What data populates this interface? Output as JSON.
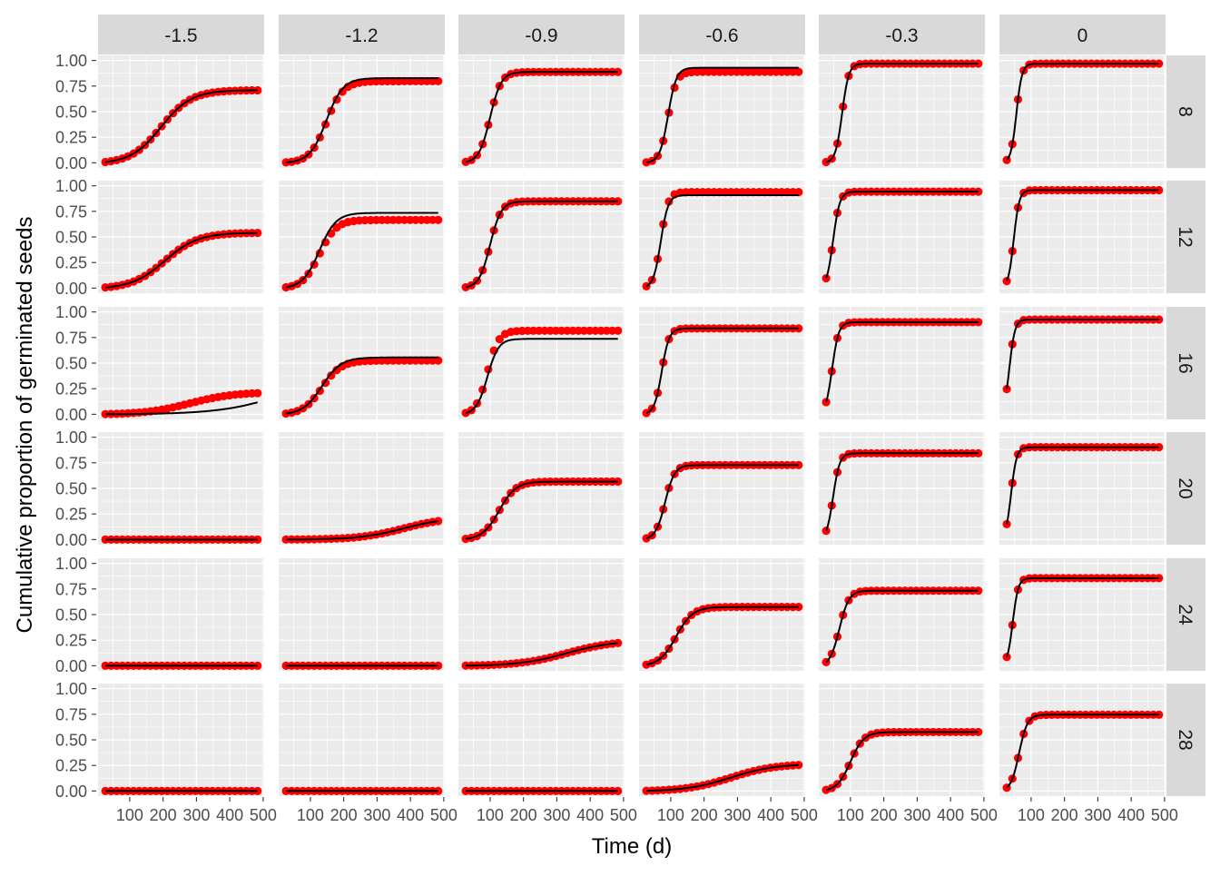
{
  "chart_data": {
    "type": "scatter",
    "subtype": "faceted scatter with fitted line",
    "xlabel": "Time (d)",
    "ylabel": "Cumulative proportion of germinated seeds",
    "x_ticks": [
      100,
      200,
      300,
      400,
      500
    ],
    "y_ticks": [
      "0.00",
      "0.25",
      "0.50",
      "0.75",
      "1.00"
    ],
    "xlim": [
      5,
      503
    ],
    "ylim": [
      -0.05,
      1.05
    ],
    "grid": true,
    "point_color": "#FF0000",
    "line_color": "#000000",
    "col_facets": [
      "-1.5",
      "-1.2",
      "-0.9",
      "-0.6",
      "-0.3",
      "0"
    ],
    "row_facets": [
      "8",
      "12",
      "16",
      "20",
      "24",
      "28"
    ],
    "times": {
      "start": 27,
      "step": 16.9,
      "count": 28
    },
    "model": "logistic: y = A / (1 + exp(-k (t - t50)))",
    "panels": [
      [
        {
          "A": 0.72,
          "t50": 194,
          "k": 0.022
        },
        {
          "A": 0.83,
          "t50": 148,
          "k": 0.04,
          "obsA": 0.8
        },
        {
          "A": 0.89,
          "t50": 100,
          "k": 0.06
        },
        {
          "A": 0.93,
          "t50": 92,
          "k": 0.08,
          "obsA": 0.89
        },
        {
          "A": 0.97,
          "t50": 75,
          "k": 0.1
        },
        {
          "A": 0.97,
          "t50": 56,
          "k": 0.12
        }
      ],
      [
        {
          "A": 0.55,
          "t50": 205,
          "k": 0.02
        },
        {
          "A": 0.74,
          "t50": 127,
          "k": 0.04,
          "obsA": 0.67
        },
        {
          "A": 0.85,
          "t50": 100,
          "k": 0.06
        },
        {
          "A": 0.91,
          "t50": 70,
          "k": 0.09,
          "obsA": 0.94
        },
        {
          "A": 0.95,
          "t50": 48,
          "k": 0.1
        },
        {
          "A": 0.96,
          "t50": 48,
          "k": 0.12
        }
      ],
      [
        {
          "A": 0.5,
          "t50": 600,
          "k": 0.01,
          "obsA": 0.22,
          "obsT50": 280,
          "obsK": 0.015
        },
        {
          "A": 0.56,
          "t50": 135,
          "k": 0.035,
          "obsA": 0.53
        },
        {
          "A": 0.74,
          "t50": 92,
          "k": 0.06,
          "obsA": 0.82
        },
        {
          "A": 0.84,
          "t50": 73,
          "k": 0.09
        },
        {
          "A": 0.91,
          "t50": 45,
          "k": 0.1
        },
        {
          "A": 0.94,
          "t50": 35,
          "k": 0.12
        }
      ],
      [
        {
          "A": 0,
          "t50": 200,
          "k": 0.02
        },
        {
          "A": 0.22,
          "t50": 380,
          "k": 0.015
        },
        {
          "A": 0.57,
          "t50": 127,
          "k": 0.04
        },
        {
          "A": 0.73,
          "t50": 83,
          "k": 0.07
        },
        {
          "A": 0.85,
          "t50": 48,
          "k": 0.1
        },
        {
          "A": 0.91,
          "t50": 40,
          "k": 0.12
        }
      ],
      [
        {
          "A": 0,
          "t50": 200,
          "k": 0.02
        },
        {
          "A": 0,
          "t50": 200,
          "k": 0.02
        },
        {
          "A": 0.25,
          "t50": 330,
          "k": 0.014
        },
        {
          "A": 0.58,
          "t50": 116,
          "k": 0.04
        },
        {
          "A": 0.74,
          "t50": 67,
          "k": 0.07
        },
        {
          "A": 0.86,
          "t50": 45,
          "k": 0.12
        }
      ],
      [
        {
          "A": 0,
          "t50": 200,
          "k": 0.02
        },
        {
          "A": 0,
          "t50": 200,
          "k": 0.02
        },
        {
          "A": 0,
          "t50": 200,
          "k": 0.02
        },
        {
          "A": 0.27,
          "t50": 280,
          "k": 0.015
        },
        {
          "A": 0.58,
          "t50": 100,
          "k": 0.05
        },
        {
          "A": 0.75,
          "t50": 64,
          "k": 0.08
        }
      ]
    ]
  }
}
